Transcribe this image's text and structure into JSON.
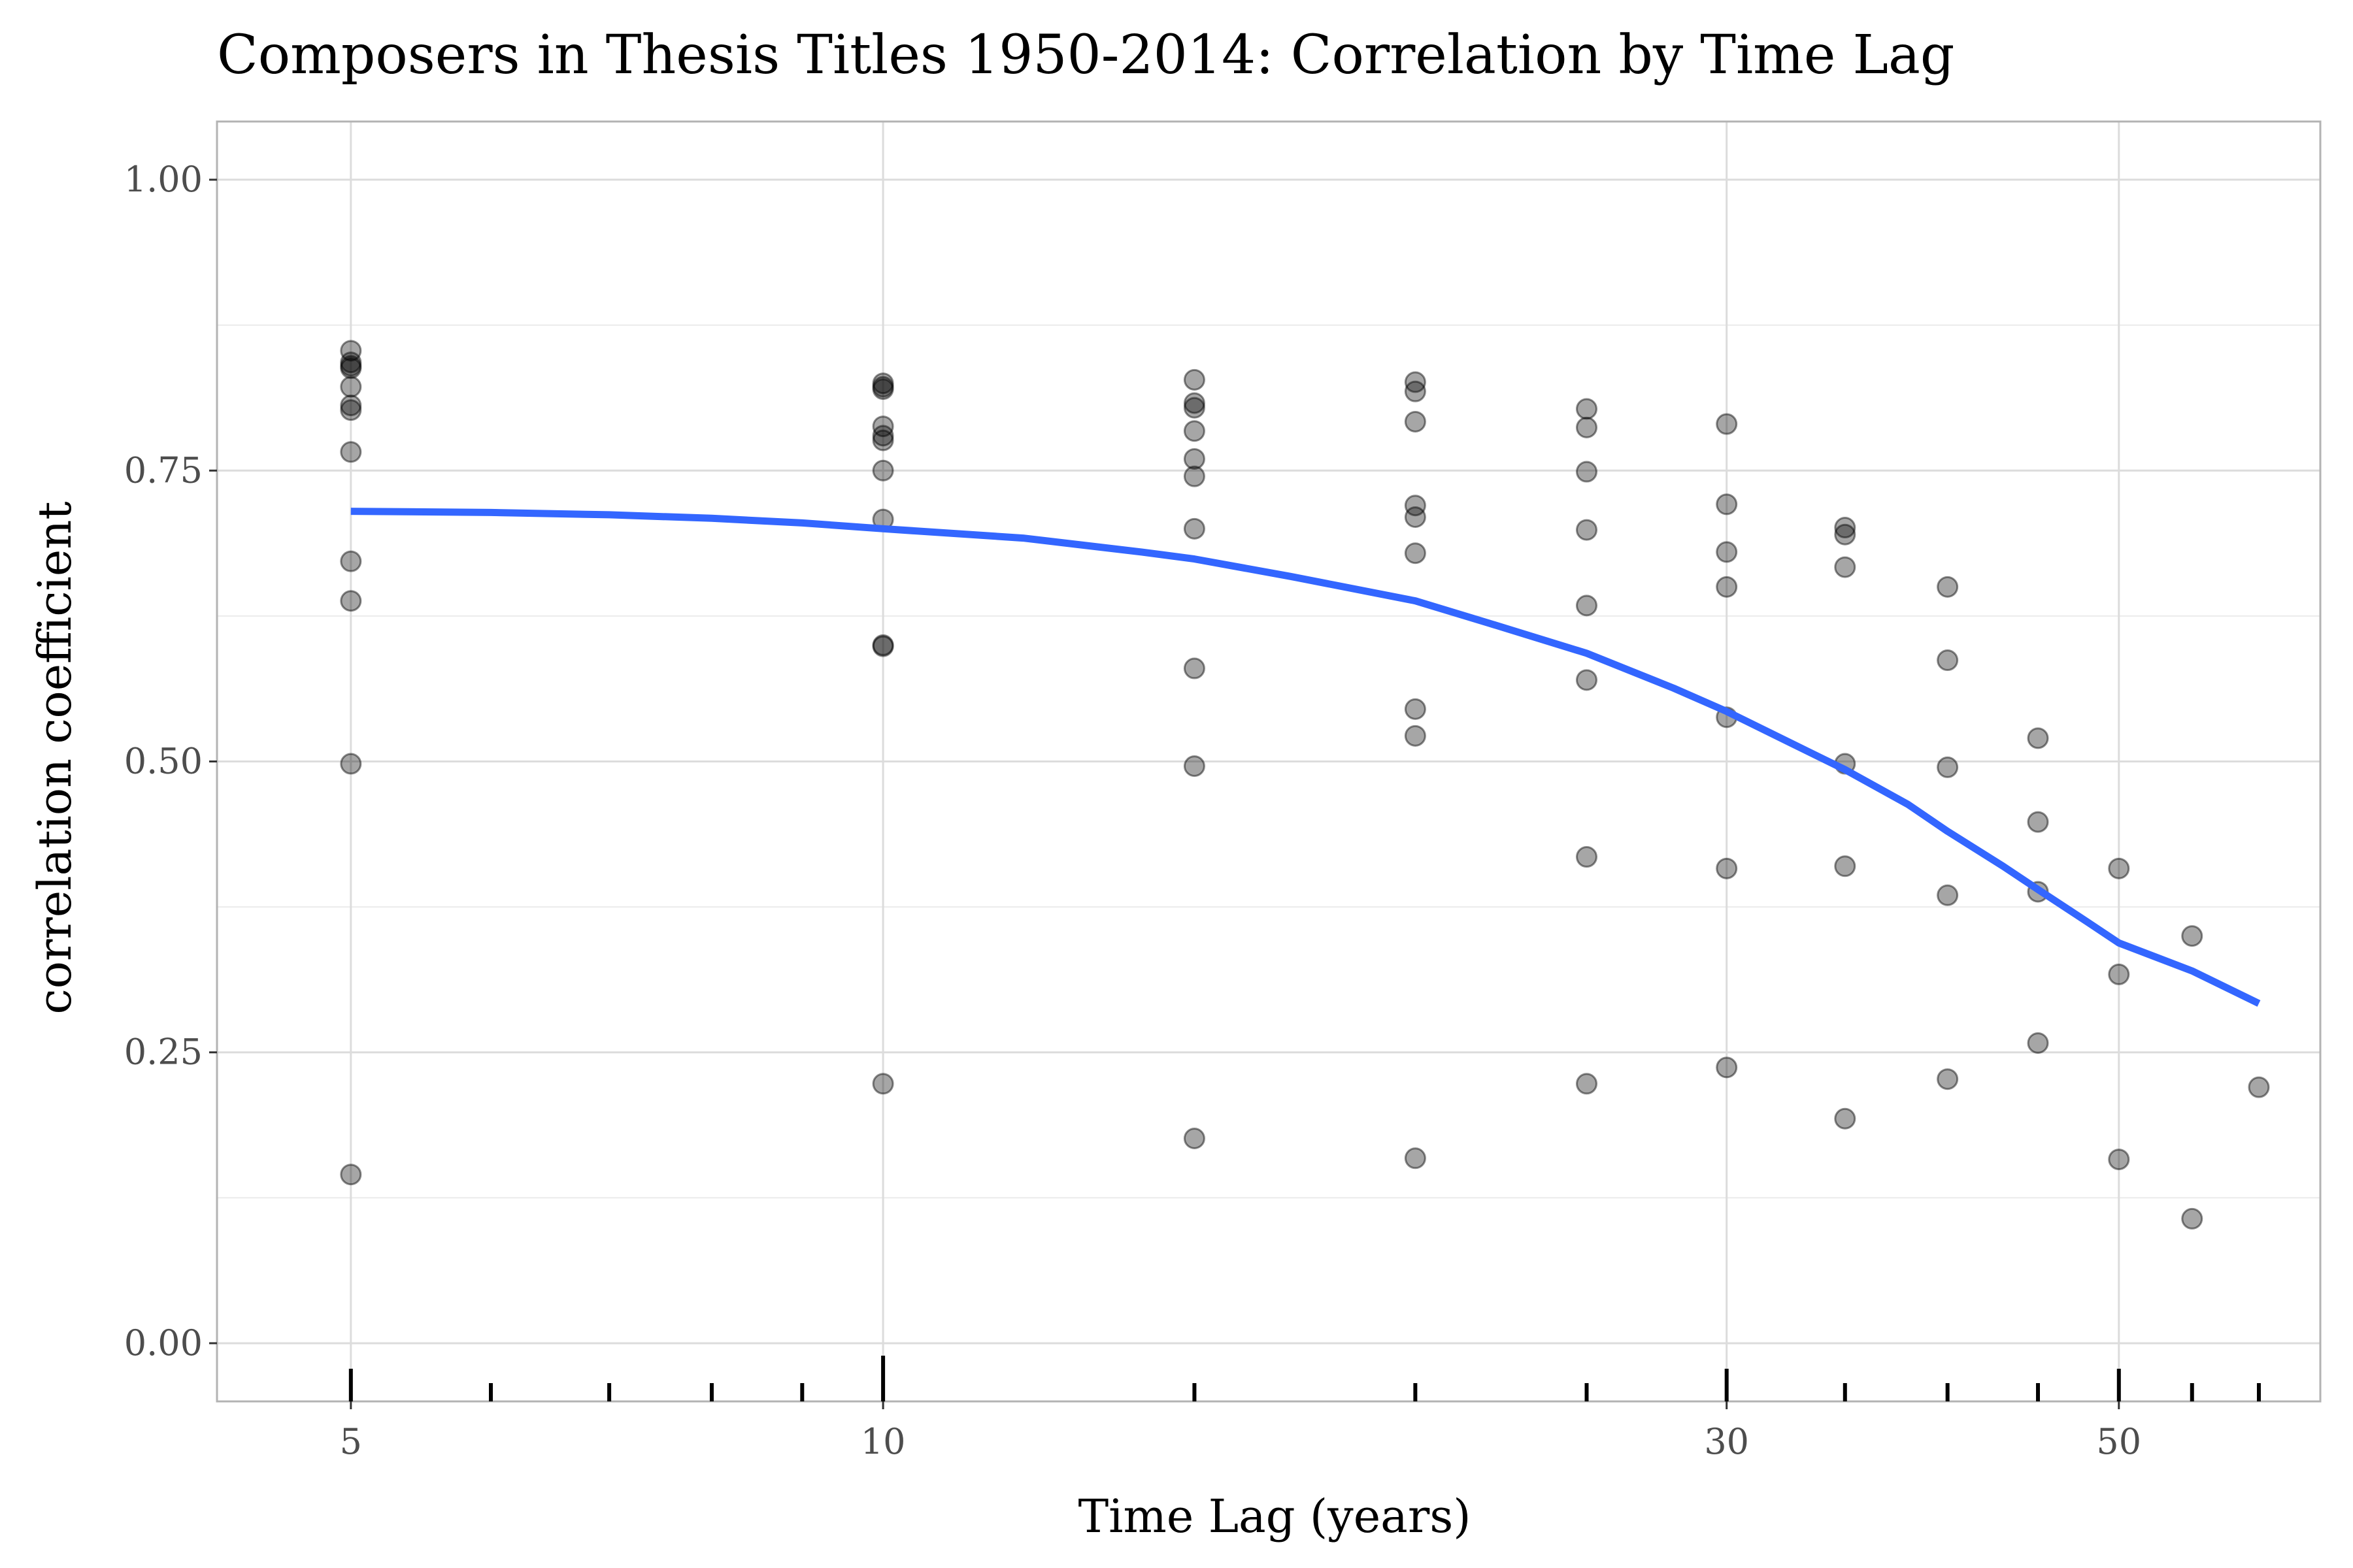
{
  "chart_data": {
    "type": "scatter",
    "title": "Composers in Thesis Titles 1950-2014: Correlation by Time Lag",
    "xlabel": "Time Lag (years)",
    "ylabel": "correlation coefficient",
    "x_scale": "log10",
    "xlim": [
      4.2,
      65
    ],
    "ylim": [
      -0.05,
      1.05
    ],
    "x_ticks": [
      5,
      10,
      30,
      50
    ],
    "x_tick_labels": [
      "5",
      "10",
      "30",
      "50"
    ],
    "y_ticks": [
      0,
      0.25,
      0.5,
      0.75,
      1.0
    ],
    "y_tick_labels": [
      "0.00",
      "0.25",
      "0.50",
      "0.75",
      "1.00"
    ],
    "rug_x": [
      5,
      6,
      7,
      8,
      9,
      10,
      15,
      20,
      25,
      30,
      35,
      40,
      45,
      50,
      55,
      60
    ],
    "grid": true,
    "legend": "none",
    "colors": {
      "points": "#000000",
      "trend": "#3366ff",
      "grid": "#dcdcdc",
      "panel_border": "#b3b3b3"
    },
    "series": [
      {
        "type": "scatter",
        "points": [
          [
            5,
            0.853
          ],
          [
            5,
            0.843
          ],
          [
            5,
            0.84
          ],
          [
            5,
            0.838
          ],
          [
            5,
            0.822
          ],
          [
            5,
            0.806
          ],
          [
            5,
            0.802
          ],
          [
            5,
            0.766
          ],
          [
            5,
            0.672
          ],
          [
            5,
            0.638
          ],
          [
            5,
            0.498
          ],
          [
            5,
            0.145
          ],
          [
            10,
            0.825
          ],
          [
            10,
            0.822
          ],
          [
            10,
            0.82
          ],
          [
            10,
            0.788
          ],
          [
            10,
            0.78
          ],
          [
            10,
            0.776
          ],
          [
            10,
            0.75
          ],
          [
            10,
            0.708
          ],
          [
            10,
            0.6
          ],
          [
            10,
            0.599
          ],
          [
            10,
            0.223
          ],
          [
            15,
            0.828
          ],
          [
            15,
            0.808
          ],
          [
            15,
            0.804
          ],
          [
            15,
            0.784
          ],
          [
            15,
            0.76
          ],
          [
            15,
            0.745
          ],
          [
            15,
            0.7
          ],
          [
            15,
            0.58
          ],
          [
            15,
            0.496
          ],
          [
            15,
            0.176
          ],
          [
            20,
            0.826
          ],
          [
            20,
            0.818
          ],
          [
            20,
            0.792
          ],
          [
            20,
            0.72
          ],
          [
            20,
            0.71
          ],
          [
            20,
            0.679
          ],
          [
            20,
            0.545
          ],
          [
            20,
            0.522
          ],
          [
            20,
            0.159
          ],
          [
            25,
            0.803
          ],
          [
            25,
            0.787
          ],
          [
            25,
            0.749
          ],
          [
            25,
            0.699
          ],
          [
            25,
            0.634
          ],
          [
            25,
            0.57
          ],
          [
            25,
            0.418
          ],
          [
            25,
            0.223
          ],
          [
            30,
            0.79
          ],
          [
            30,
            0.721
          ],
          [
            30,
            0.68
          ],
          [
            30,
            0.65
          ],
          [
            30,
            0.538
          ],
          [
            30,
            0.408
          ],
          [
            30,
            0.237
          ],
          [
            35,
            0.701
          ],
          [
            35,
            0.695
          ],
          [
            35,
            0.667
          ],
          [
            35,
            0.498
          ],
          [
            35,
            0.41
          ],
          [
            35,
            0.193
          ],
          [
            40,
            0.65
          ],
          [
            40,
            0.587
          ],
          [
            40,
            0.495
          ],
          [
            40,
            0.385
          ],
          [
            40,
            0.227
          ],
          [
            45,
            0.52
          ],
          [
            45,
            0.448
          ],
          [
            45,
            0.388
          ],
          [
            45,
            0.258
          ],
          [
            50,
            0.408
          ],
          [
            50,
            0.317
          ],
          [
            50,
            0.158
          ],
          [
            55,
            0.35
          ],
          [
            55,
            0.107
          ],
          [
            60,
            0.22
          ]
        ]
      },
      {
        "type": "line",
        "points": [
          [
            5,
            0.715
          ],
          [
            6,
            0.714
          ],
          [
            7,
            0.712
          ],
          [
            8,
            0.709
          ],
          [
            9,
            0.705
          ],
          [
            10,
            0.7
          ],
          [
            12,
            0.692
          ],
          [
            14,
            0.68
          ],
          [
            15,
            0.674
          ],
          [
            17,
            0.659
          ],
          [
            20,
            0.638
          ],
          [
            22,
            0.619
          ],
          [
            25,
            0.593
          ],
          [
            28,
            0.563
          ],
          [
            30,
            0.543
          ],
          [
            33,
            0.512
          ],
          [
            35,
            0.493
          ],
          [
            38,
            0.463
          ],
          [
            40,
            0.44
          ],
          [
            43,
            0.41
          ],
          [
            45,
            0.39
          ],
          [
            48,
            0.362
          ],
          [
            50,
            0.344
          ],
          [
            55,
            0.32
          ],
          [
            60,
            0.292
          ]
        ]
      }
    ]
  }
}
